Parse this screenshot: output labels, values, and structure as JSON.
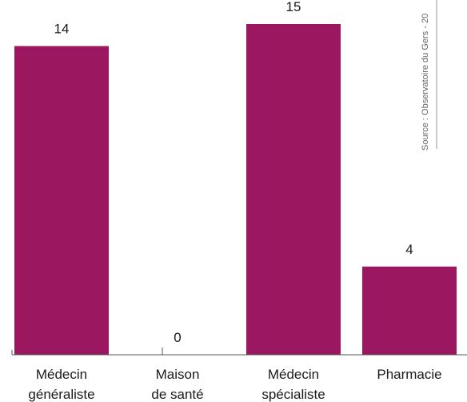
{
  "chart_data": {
    "type": "bar",
    "categories": [
      [
        "Médecin",
        "généraliste"
      ],
      [
        "Maison",
        "de santé"
      ],
      [
        "Médecin",
        "spécialiste"
      ],
      [
        "Pharmacie"
      ]
    ],
    "values": [
      14,
      0,
      15,
      4
    ],
    "bar_color": "#9b1760",
    "ylim": [
      0,
      15
    ],
    "grid": false,
    "source": "Source : Observatoire du Gers - 20"
  }
}
